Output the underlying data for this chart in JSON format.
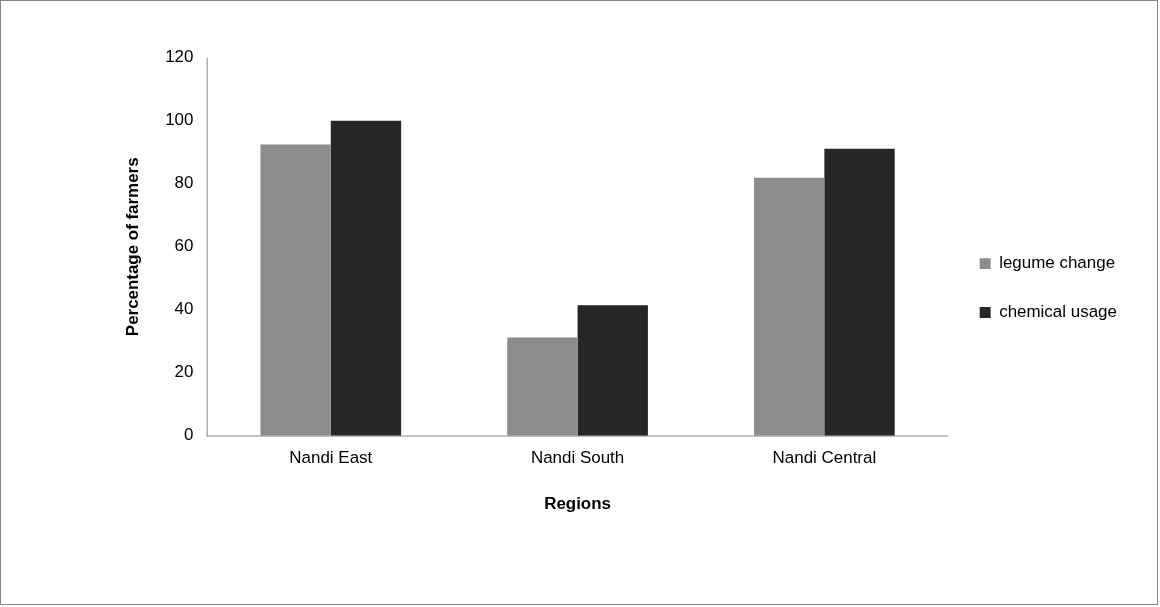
{
  "chart_data": {
    "type": "bar",
    "xlabel": "Regions",
    "ylabel": "Percentage of farmers",
    "categories": [
      "Nandi East",
      "Nandi South",
      "Nandi Central"
    ],
    "series": [
      {
        "name": "legume change",
        "color": "#8c8c8c",
        "values": [
          92.5,
          31.2,
          81.9
        ]
      },
      {
        "name": "chemical usage",
        "color": "#262626",
        "values": [
          100,
          41.4,
          91.1
        ]
      }
    ],
    "ylim": [
      0,
      120
    ],
    "yticks": [
      0,
      20,
      40,
      60,
      80,
      100,
      120
    ],
    "grid": false,
    "legend": "right"
  }
}
